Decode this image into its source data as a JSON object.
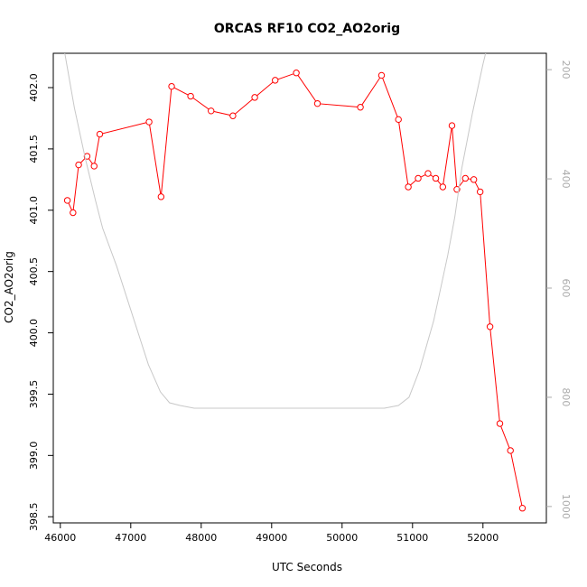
{
  "chart_data": {
    "type": "line",
    "title": "ORCAS RF10 CO2_AO2orig",
    "xlabel": "UTC Seconds",
    "ylabel": "CO2_AO2orig",
    "xlim": [
      45900,
      52900
    ],
    "ylim": [
      398.45,
      402.28
    ],
    "x_ticks": [
      46000,
      47000,
      48000,
      49000,
      50000,
      51000,
      52000
    ],
    "y_ticks": [
      398.5,
      399.0,
      399.5,
      400.0,
      400.5,
      401.0,
      401.5,
      402.0
    ],
    "y2_ticks": [
      200,
      400,
      600,
      800,
      1000
    ],
    "y2_reversed": true,
    "y2_lim": [
      1030,
      170
    ],
    "grid": false,
    "series": [
      {
        "color": "#ff0000",
        "marker": "open-circle",
        "axis": "left",
        "x": [
          46100,
          46180,
          46260,
          46380,
          46480,
          46560,
          47260,
          47430,
          47580,
          47850,
          48140,
          48450,
          48760,
          49050,
          49350,
          49650,
          50260,
          50560,
          50800,
          50940,
          51080,
          51220,
          51330,
          51430,
          51560,
          51630,
          51750,
          51870,
          51960,
          52100,
          52240,
          52390,
          52560
        ],
        "y": [
          401.08,
          400.98,
          401.37,
          401.44,
          401.36,
          401.62,
          401.72,
          401.11,
          402.01,
          401.93,
          401.81,
          401.77,
          401.92,
          402.06,
          402.12,
          401.87,
          401.84,
          402.1,
          401.74,
          401.19,
          401.26,
          401.3,
          401.26,
          401.19,
          401.69,
          401.17,
          401.26,
          401.25,
          401.15,
          400.05,
          399.26,
          399.04,
          398.57
        ]
      },
      {
        "color": "#c8c8c8",
        "marker": "none",
        "axis": "right",
        "x": [
          46050,
          46200,
          46350,
          46500,
          46600,
          46800,
          47000,
          47150,
          47250,
          47420,
          47550,
          47700,
          47900,
          48200,
          48600,
          49000,
          49500,
          50000,
          50500,
          50600,
          50800,
          50950,
          51100,
          51300,
          51500,
          51600,
          51700,
          51850,
          52000,
          52150,
          52300
        ],
        "y": [
          160,
          270,
          360,
          440,
          490,
          560,
          640,
          700,
          740,
          790,
          810,
          815,
          820,
          820,
          820,
          820,
          820,
          820,
          820,
          820,
          815,
          800,
          750,
          660,
          540,
          470,
          380,
          280,
          190,
          110,
          40
        ]
      }
    ]
  }
}
